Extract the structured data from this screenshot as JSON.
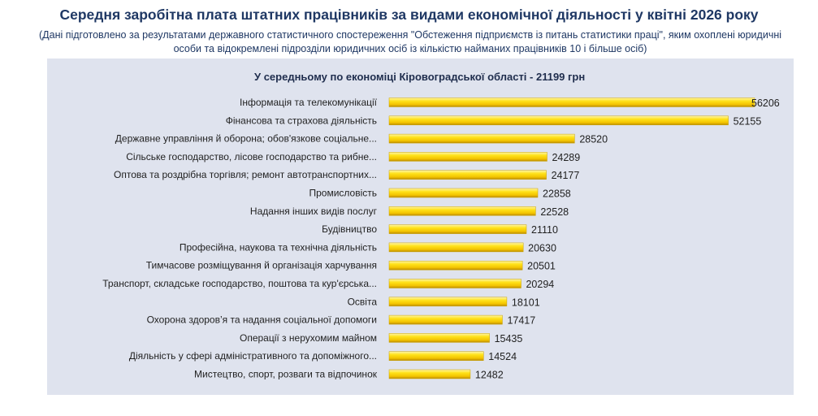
{
  "header": {
    "title": "Середня заробітна плата штатних працівників за видами економічної діяльності у квітні 2026 року",
    "subtitle": "(Дані підготовлено за результатами державного статистичного спостереження \"Обстеження підприємств із питань статистики праці\", яким охоплені юридичні особи та відокремлені підрозділи юридичних осіб із кількістю найманих працівників 10 і більше осіб)"
  },
  "chart_data": {
    "type": "bar",
    "orientation": "horizontal",
    "annotation": "У середньому по економіці Кіровоградської області - 21199 грн",
    "categories": [
      "Інформація та телекомунікації",
      "Фінансова та страхова діяльність",
      "Державне управління й оборона; обов'язкове соціальне...",
      "Сільське господарство, лісове господарство та рибне...",
      "Оптова та роздрібна торгівля; ремонт автотранспортних...",
      "Промисловість",
      "Надання інших видів послуг",
      "Будівництво",
      "Професійна, наукова та технічна діяльність",
      "Тимчасове розміщування й організація харчування",
      "Транспорт, складське господарство, поштова та кур'єрська...",
      "Освіта",
      "Охорона здоров’я та надання соціальної допомоги",
      "Операції з нерухомим майном",
      "Діяльність у сфері адміністративного та допоміжного...",
      "Мистецтво, спорт, розваги та відпочинок"
    ],
    "values": [
      56206,
      52155,
      28520,
      24289,
      24177,
      22858,
      22528,
      21110,
      20630,
      20501,
      20294,
      18101,
      17417,
      15435,
      14524,
      12482
    ],
    "xlim": [
      0,
      56206
    ],
    "grid": false,
    "legend": "none",
    "bar_color": "#ffd400"
  }
}
